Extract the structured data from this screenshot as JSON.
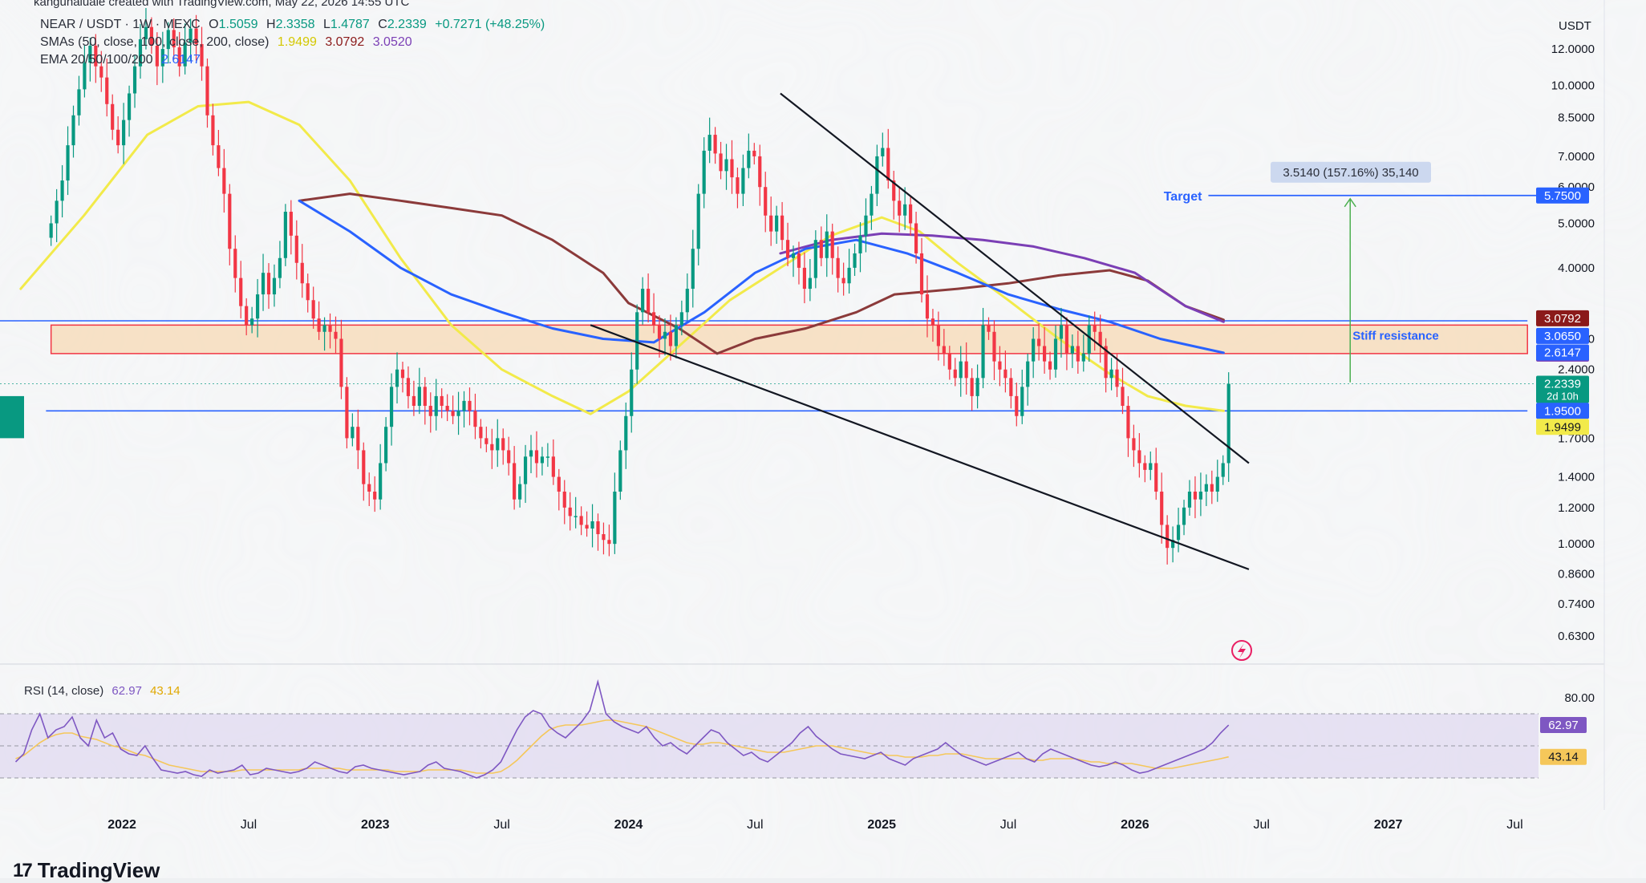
{
  "header": {
    "watermark": "kangunaluale created with TradingView.com, May 22, 2026 14:55 UTC",
    "symbol": "NEAR / USDT · 1W · MEXC",
    "ohlc": {
      "open_label": "O",
      "open": "1.5059",
      "high_label": "H",
      "high": "2.3358",
      "low_label": "L",
      "low": "1.4787",
      "close_label": "C",
      "close": "2.2339",
      "change": "+0.7271 (+48.25%)"
    },
    "sma_label": "SMAs (50, close, 100, close, 200, close)",
    "sma_values": [
      "1.9499",
      "3.0792",
      "3.0520"
    ],
    "ema_label": "EMA 20/50/100/200",
    "ema_value": "2.6147"
  },
  "currency": "USDT",
  "rsi": {
    "label": "RSI (14, close)",
    "value": "62.97",
    "ma": "43.14",
    "level_high": "80.00"
  },
  "brand": "TradingView",
  "colors": {
    "up": "#089981",
    "down": "#f23645",
    "sma50": "#f2ea4a",
    "sma100": "#8b3a3a",
    "sma200": "#7b3fb5",
    "ema": "#2962ff",
    "hline": "#2962ff",
    "zone": "#f7d9b5",
    "zone_border": "#f23645",
    "rsi_line": "#7e57c2",
    "rsi_ma": "#f5c75a",
    "rsi_bg": "#d8d0ef",
    "trend": "#131722"
  },
  "chart_data": {
    "type": "candlestick",
    "y_scale": "log",
    "ylim": [
      0.6,
      13.0
    ],
    "price_ticks": [
      "12.0000",
      "10.0000",
      "8.5000",
      "7.0000",
      "6.0000",
      "5.0000",
      "4.0000",
      "2.8000",
      "2.4000",
      "1.7000",
      "1.4000",
      "1.2000",
      "1.0000",
      "0.8600",
      "0.7400",
      "0.6300"
    ],
    "price_badges": [
      {
        "label": "5.7500",
        "value": 5.75,
        "color": "#2962ff"
      },
      {
        "label": "3.0792",
        "value": 3.0792,
        "color": "#8b1a1a"
      },
      {
        "label": "3.0650",
        "value": 3.065,
        "color": "#2962ff"
      },
      {
        "label": "3.0520",
        "value": 3.052,
        "color": "#7b3fb5"
      },
      {
        "label": "2.6147",
        "value": 2.6147,
        "color": "#2962ff"
      },
      {
        "label": "2.2339",
        "value": 2.2339,
        "color": "#089981",
        "sub": "2d 10h"
      },
      {
        "label": "1.9500",
        "value": 1.95,
        "color": "#2962ff"
      },
      {
        "label": "1.9499",
        "value": 1.9499,
        "color": "#f2ea4a",
        "dark": true
      }
    ],
    "time_ticks": [
      {
        "label": "2022",
        "t": 2022.0,
        "bold": true
      },
      {
        "label": "Jul",
        "t": 2022.5
      },
      {
        "label": "2023",
        "t": 2023.0,
        "bold": true
      },
      {
        "label": "Jul",
        "t": 2023.5
      },
      {
        "label": "2024",
        "t": 2024.0,
        "bold": true
      },
      {
        "label": "Jul",
        "t": 2024.5
      },
      {
        "label": "2025",
        "t": 2025.0,
        "bold": true
      },
      {
        "label": "Jul",
        "t": 2025.5
      },
      {
        "label": "2026",
        "t": 2026.0,
        "bold": true
      },
      {
        "label": "Jul",
        "t": 2026.5
      },
      {
        "label": "2027",
        "t": 2027.0,
        "bold": true
      },
      {
        "label": "Jul",
        "t": 2027.5
      }
    ],
    "candles_close": [
      5.0,
      5.6,
      6.2,
      7.4,
      8.6,
      9.8,
      11.2,
      12.2,
      11.0,
      10.4,
      9.1,
      8.0,
      7.4,
      8.4,
      9.6,
      11.0,
      12.6,
      13.4,
      12.2,
      11.0,
      12.0,
      13.2,
      12.1,
      11.0,
      12.4,
      13.3,
      12.3,
      11.0,
      8.6,
      7.4,
      6.6,
      5.8,
      4.4,
      3.8,
      3.3,
      3.0,
      3.1,
      3.5,
      3.9,
      3.5,
      3.8,
      4.2,
      5.3,
      4.7,
      4.1,
      3.7,
      3.4,
      3.1,
      2.9,
      3.0,
      2.9,
      2.8,
      2.2,
      1.7,
      1.8,
      1.6,
      1.35,
      1.3,
      1.25,
      1.5,
      1.8,
      2.2,
      2.4,
      2.3,
      2.1,
      2.0,
      2.2,
      2.0,
      1.9,
      2.1,
      2.0,
      1.95,
      1.9,
      1.95,
      2.05,
      1.95,
      1.8,
      1.7,
      1.65,
      1.6,
      1.7,
      1.6,
      1.5,
      1.25,
      1.35,
      1.55,
      1.6,
      1.5,
      1.55,
      1.55,
      1.4,
      1.3,
      1.2,
      1.15,
      1.15,
      1.1,
      1.08,
      1.12,
      1.05,
      1.02,
      1.0,
      1.3,
      1.6,
      1.9,
      2.4,
      3.2,
      3.6,
      3.2,
      3.0,
      2.8,
      2.9,
      2.7,
      3.0,
      3.2,
      3.6,
      4.4,
      5.8,
      7.2,
      7.8,
      7.1,
      6.5,
      6.9,
      6.3,
      5.8,
      6.6,
      7.2,
      7.0,
      6.0,
      5.2,
      4.8,
      5.2,
      4.6,
      4.2,
      4.3,
      4.0,
      3.6,
      3.8,
      4.6,
      4.2,
      4.8,
      4.2,
      3.8,
      3.7,
      4.0,
      4.3,
      4.7,
      5.2,
      5.8,
      7.0,
      7.3,
      6.2,
      5.6,
      5.2,
      5.5,
      5.0,
      4.3,
      3.5,
      3.1,
      3.0,
      2.7,
      2.6,
      2.4,
      2.3,
      2.5,
      2.3,
      2.1,
      2.3,
      3.0,
      2.9,
      2.5,
      2.4,
      2.3,
      2.1,
      1.9,
      2.2,
      2.5,
      2.8,
      2.7,
      2.5,
      2.4,
      2.8,
      3.0,
      2.6,
      2.7,
      2.5,
      2.6,
      3.0,
      2.9,
      2.7,
      2.3,
      2.4,
      2.2,
      2.0,
      1.7,
      1.6,
      1.5,
      1.45,
      1.5,
      1.3,
      1.1,
      0.98,
      1.02,
      1.1,
      1.2,
      1.3,
      1.25,
      1.3,
      1.35,
      1.3,
      1.4,
      1.5,
      2.2339
    ],
    "series": [
      {
        "name": "SMA 50",
        "color": "#f2ea4a",
        "points": [
          [
            2021.6,
            3.6
          ],
          [
            2021.85,
            5.2
          ],
          [
            2022.1,
            7.8
          ],
          [
            2022.3,
            9.0
          ],
          [
            2022.5,
            9.2
          ],
          [
            2022.7,
            8.2
          ],
          [
            2022.9,
            6.2
          ],
          [
            2023.1,
            4.2
          ],
          [
            2023.3,
            3.0
          ],
          [
            2023.5,
            2.4
          ],
          [
            2023.7,
            2.1
          ],
          [
            2023.85,
            1.92
          ],
          [
            2024.0,
            2.15
          ],
          [
            2024.2,
            2.7
          ],
          [
            2024.4,
            3.4
          ],
          [
            2024.6,
            4.0
          ],
          [
            2024.8,
            4.7
          ],
          [
            2025.0,
            5.15
          ],
          [
            2025.15,
            4.8
          ],
          [
            2025.3,
            4.1
          ],
          [
            2025.5,
            3.4
          ],
          [
            2025.7,
            2.8
          ],
          [
            2025.9,
            2.35
          ],
          [
            2026.05,
            2.1
          ],
          [
            2026.2,
            2.0
          ],
          [
            2026.35,
            1.95
          ]
        ]
      },
      {
        "name": "SMA 100",
        "color": "#8b3a3a",
        "points": [
          [
            2022.7,
            5.6
          ],
          [
            2022.9,
            5.8
          ],
          [
            2023.1,
            5.6
          ],
          [
            2023.3,
            5.4
          ],
          [
            2023.5,
            5.2
          ],
          [
            2023.7,
            4.6
          ],
          [
            2023.9,
            3.9
          ],
          [
            2024.0,
            3.35
          ],
          [
            2024.2,
            2.95
          ],
          [
            2024.35,
            2.6
          ],
          [
            2024.5,
            2.8
          ],
          [
            2024.7,
            2.95
          ],
          [
            2024.9,
            3.2
          ],
          [
            2025.05,
            3.5
          ],
          [
            2025.3,
            3.6
          ],
          [
            2025.5,
            3.7
          ],
          [
            2025.7,
            3.85
          ],
          [
            2025.9,
            3.95
          ],
          [
            2026.05,
            3.75
          ],
          [
            2026.2,
            3.3
          ],
          [
            2026.35,
            3.08
          ]
        ]
      },
      {
        "name": "SMA 200",
        "color": "#7b3fb5",
        "points": [
          [
            2024.6,
            4.3
          ],
          [
            2024.8,
            4.6
          ],
          [
            2025.0,
            4.75
          ],
          [
            2025.2,
            4.7
          ],
          [
            2025.4,
            4.6
          ],
          [
            2025.6,
            4.45
          ],
          [
            2025.8,
            4.2
          ],
          [
            2026.0,
            3.9
          ],
          [
            2026.2,
            3.3
          ],
          [
            2026.35,
            3.05
          ]
        ]
      },
      {
        "name": "EMA",
        "color": "#2962ff",
        "points": [
          [
            2022.7,
            5.6
          ],
          [
            2022.9,
            4.8
          ],
          [
            2023.1,
            4.0
          ],
          [
            2023.3,
            3.5
          ],
          [
            2023.5,
            3.2
          ],
          [
            2023.7,
            2.95
          ],
          [
            2023.9,
            2.8
          ],
          [
            2024.1,
            2.75
          ],
          [
            2024.3,
            3.2
          ],
          [
            2024.5,
            3.9
          ],
          [
            2024.7,
            4.4
          ],
          [
            2024.9,
            4.6
          ],
          [
            2025.1,
            4.3
          ],
          [
            2025.3,
            3.9
          ],
          [
            2025.5,
            3.5
          ],
          [
            2025.7,
            3.25
          ],
          [
            2025.9,
            3.05
          ],
          [
            2026.1,
            2.8
          ],
          [
            2026.35,
            2.61
          ]
        ]
      }
    ],
    "trendlines": [
      {
        "from": [
          2024.6,
          9.6
        ],
        "to": [
          2026.45,
          1.5
        ]
      },
      {
        "from": [
          2023.85,
          3.0
        ],
        "to": [
          2026.45,
          0.88
        ]
      }
    ],
    "hlines": [
      {
        "value": 3.065,
        "from": 2021.0,
        "to": 2027.55
      },
      {
        "value": 1.95,
        "from": 2021.7,
        "to": 2027.55
      }
    ],
    "zone": {
      "low": 2.6,
      "high": 3.0,
      "from": 2021.72,
      "to": 2027.55,
      "label": "Stiff resistance"
    },
    "target": {
      "value": 5.75,
      "from": 2026.1,
      "label": "Target",
      "measure": "3.5140 (157.16%) 35,140",
      "arrow_from_value": 2.25,
      "arrow_t": 2026.85
    },
    "rsi_values": [
      40,
      45,
      60,
      70,
      55,
      60,
      62,
      68,
      55,
      50,
      66,
      55,
      58,
      48,
      45,
      44,
      50,
      42,
      35,
      34,
      33,
      34,
      32,
      31,
      35,
      33,
      34,
      35,
      38,
      32,
      33,
      36,
      35,
      34,
      33,
      34,
      36,
      40,
      38,
      36,
      34,
      33,
      37,
      38,
      36,
      35,
      34,
      33,
      32,
      33,
      34,
      38,
      40,
      36,
      35,
      34,
      32,
      30,
      32,
      35,
      40,
      50,
      60,
      68,
      72,
      70,
      62,
      58,
      55,
      60,
      65,
      72,
      90,
      70,
      65,
      62,
      60,
      58,
      62,
      55,
      50,
      52,
      48,
      45,
      50,
      55,
      60,
      58,
      52,
      48,
      44,
      46,
      42,
      40,
      44,
      48,
      52,
      58,
      62,
      56,
      52,
      48,
      45,
      44,
      43,
      42,
      44,
      46,
      42,
      40,
      38,
      42,
      44,
      46,
      48,
      52,
      48,
      44,
      42,
      40,
      38,
      40,
      42,
      44,
      46,
      42,
      40,
      45,
      48,
      46,
      44,
      42,
      40,
      38,
      37,
      38,
      40,
      38,
      35,
      33,
      34,
      36,
      38,
      40,
      42,
      44,
      46,
      48,
      52,
      58,
      62.97
    ],
    "rsi_ma_values": [
      42,
      44,
      48,
      52,
      55,
      57,
      58,
      58,
      56,
      55,
      54,
      52,
      50,
      49,
      47,
      45,
      44,
      42,
      40,
      38,
      37,
      36,
      35,
      34,
      34,
      34,
      34,
      34,
      35,
      35,
      35,
      35,
      35,
      35,
      35,
      35,
      36,
      36,
      36,
      36,
      36,
      35,
      35,
      35,
      35,
      35,
      35,
      34,
      34,
      34,
      34,
      35,
      35,
      35,
      35,
      35,
      34,
      33,
      33,
      33,
      34,
      37,
      41,
      46,
      51,
      56,
      60,
      62,
      63,
      63,
      63,
      64,
      65,
      66,
      66,
      65,
      64,
      63,
      62,
      60,
      58,
      56,
      54,
      52,
      51,
      51,
      52,
      52,
      51,
      50,
      49,
      48,
      47,
      46,
      46,
      46,
      47,
      48,
      49,
      50,
      50,
      50,
      49,
      48,
      47,
      46,
      45,
      45,
      44,
      44,
      43,
      43,
      43,
      44,
      44,
      45,
      45,
      45,
      44,
      43,
      42,
      42,
      42,
      42,
      42,
      42,
      41,
      41,
      42,
      42,
      42,
      42,
      41,
      40,
      40,
      39,
      39,
      39,
      39,
      38,
      37,
      36,
      36,
      36,
      37,
      38,
      39,
      40,
      41,
      42,
      43.14
    ],
    "rsi_levels": [
      70,
      50,
      30
    ]
  }
}
